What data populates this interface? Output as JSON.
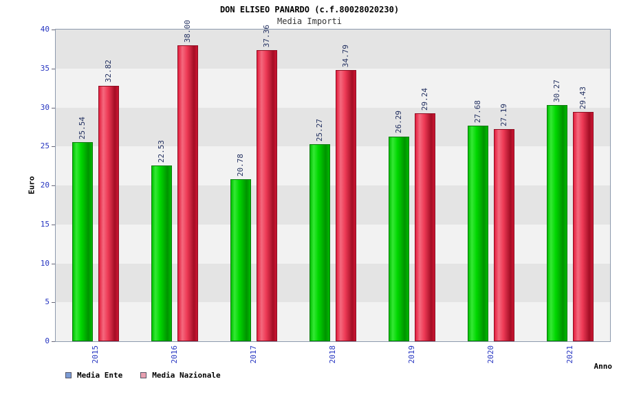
{
  "title": "DON ELISEO PANARDO (c.f.80028020230)",
  "subtitle": "Media Importi",
  "axes": {
    "y_label": "Euro",
    "x_label": "Anno",
    "y_ticks": [
      "0",
      "5",
      "10",
      "15",
      "20",
      "25",
      "30",
      "35",
      "40"
    ]
  },
  "legend": {
    "items": [
      {
        "label": "Media Ente",
        "swatch_color": "#7b9bd4"
      },
      {
        "label": "Media Nazionale",
        "swatch_color": "#e8a0b0"
      }
    ]
  },
  "chart_data": {
    "type": "bar",
    "title": "DON ELISEO PANARDO (c.f.80028020230)",
    "subtitle": "Media Importi",
    "categories": [
      "2015",
      "2016",
      "2017",
      "2018",
      "2019",
      "2020",
      "2021"
    ],
    "series": [
      {
        "name": "Media Ente",
        "color": "#00cc00",
        "values": [
          25.54,
          22.53,
          20.78,
          25.27,
          26.29,
          27.68,
          30.27
        ]
      },
      {
        "name": "Media Nazionale",
        "color": "#e02040",
        "values": [
          32.82,
          38.0,
          37.36,
          34.79,
          29.24,
          27.19,
          29.43
        ]
      }
    ],
    "xlabel": "Anno",
    "ylabel": "Euro",
    "ylim": [
      0,
      40
    ],
    "ytick_step": 5,
    "value_labels": true,
    "value_label_rotation": "vertical",
    "legend_position": "bottom-left",
    "grid": "horizontal-bands"
  },
  "colors": {
    "tick_label": "#2433c0",
    "value_label": "#1f2d5e",
    "band_dark": "#e4e4e4",
    "band_light": "#f2f2f2",
    "ente_bar": "#00cc00",
    "nazionale_bar": "#e02040"
  }
}
